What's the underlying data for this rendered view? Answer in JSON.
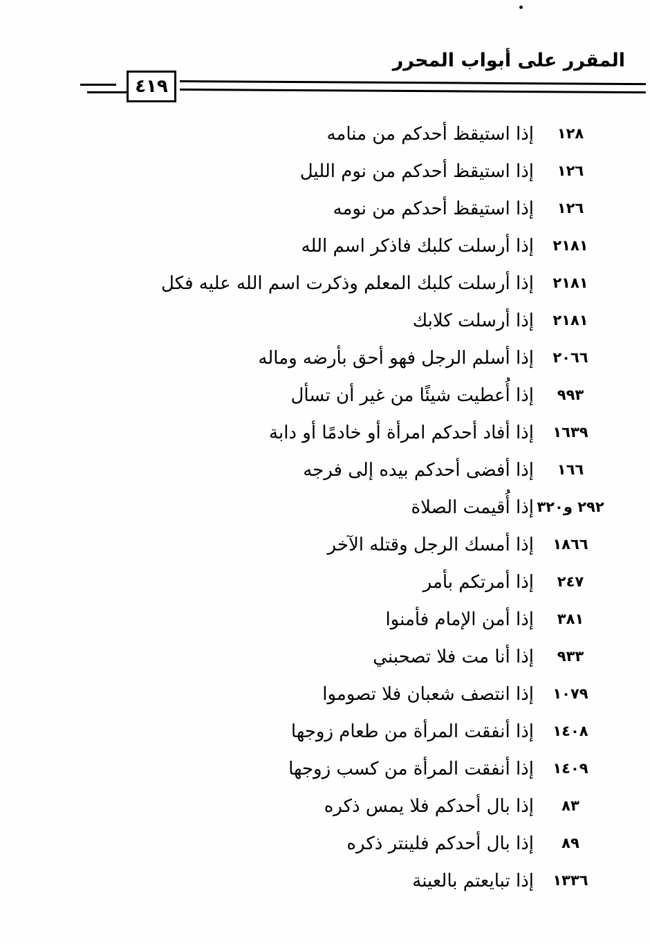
{
  "header": {
    "title": "المقرر على أبواب المحرر",
    "page_number": "٤١٩"
  },
  "index": {
    "entries": [
      {
        "text": "إذا استيقظ أحدكم من منامه",
        "number": "١٢٨"
      },
      {
        "text": "إذا استيقظ أحدكم من نوم الليل",
        "number": "١٢٦"
      },
      {
        "text": "إذا استيقظ أحدكم من نومه",
        "number": "١٢٦"
      },
      {
        "text": "إذا أرسلت كلبك فاذكر اسم الله",
        "number": "٢١٨١"
      },
      {
        "text": "إذا أرسلت كلبك المعلم وذكرت اسم الله عليه فكل",
        "number": "٢١٨١"
      },
      {
        "text": "إذا أرسلت كلابك",
        "number": "٢١٨١"
      },
      {
        "text": "إذا أسلم الرجل فهو أحق بأرضه وماله",
        "number": "٢٠٦٦"
      },
      {
        "text": "إذا أُعطيت شيئًا من غير أن تسأل",
        "number": "٩٩٣"
      },
      {
        "text": "إذا أفاد أحدكم امرأة أو خادمًا أو دابة",
        "number": "١٦٣٩"
      },
      {
        "text": "إذا أفضى أحدكم بيده إلى فرجه",
        "number": "١٦٦"
      },
      {
        "text": "إذا أُقيمت الصلاة",
        "number": "٢٩٢ و٣٢٠"
      },
      {
        "text": "إذا أمسك الرجل وقتله الآخر",
        "number": "١٨٦٦"
      },
      {
        "text": "إذا أمرتكم بأمر",
        "number": "٢٤٧"
      },
      {
        "text": "إذا أمن الإمام فأمنوا",
        "number": "٣٨١"
      },
      {
        "text": "إذا أنا مت فلا تصحبني",
        "number": "٩٣٣"
      },
      {
        "text": "إذا انتصف شعبان فلا تصوموا",
        "number": "١٠٧٩"
      },
      {
        "text": "إذا أنفقت المرأة من طعام زوجها",
        "number": "١٤٠٨"
      },
      {
        "text": "إذا أنفقت المرأة من كسب زوجها",
        "number": "١٤٠٩"
      },
      {
        "text": "إذا بال أحدكم فلا يمس ذكره",
        "number": "٨٣"
      },
      {
        "text": "إذا بال أحدكم فلينتر ذكره",
        "number": "٨٩"
      },
      {
        "text": "إذا تبايعتم بالعينة",
        "number": "١٣٣٦"
      }
    ]
  },
  "colors": {
    "ink": "#000000",
    "paper": "#fefefe"
  }
}
